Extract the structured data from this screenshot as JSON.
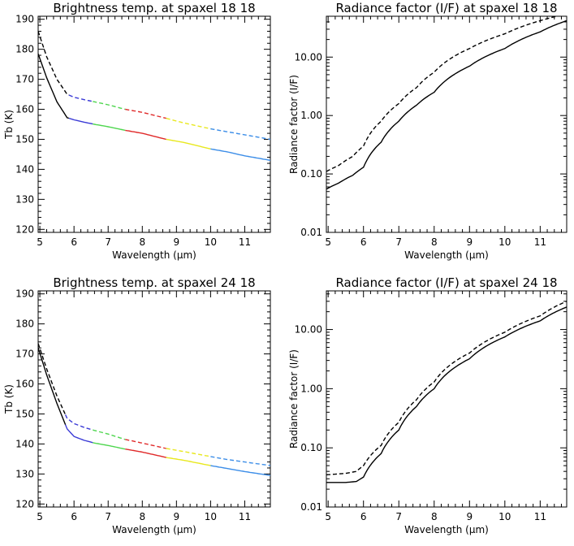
{
  "chart_data": [
    {
      "type": "line",
      "title": "Brightness temp. at spaxel 18 18",
      "xlabel": "Wavelength (μm)",
      "ylabel": "Tb (K)",
      "xlim": [
        4.95,
        11.75
      ],
      "ylim": [
        119,
        191
      ],
      "yscale": "linear",
      "xticks": [
        5,
        6,
        7,
        8,
        9,
        10,
        11
      ],
      "xtick_labels": [
        "5",
        "6",
        "7",
        "8",
        "9",
        "10",
        "11"
      ],
      "yticks": [
        120,
        130,
        140,
        150,
        160,
        170,
        180,
        190
      ],
      "ytick_labels": [
        "120",
        "130",
        "140",
        "150",
        "160",
        "170",
        "180",
        "190"
      ],
      "series": [
        {
          "name": "solid",
          "style": "solid",
          "x": [
            4.95,
            5.2,
            5.5,
            5.8,
            6.0,
            6.3,
            6.6,
            7.0,
            7.5,
            8.0,
            8.7,
            9.2,
            10.0,
            10.5,
            11.0,
            11.75
          ],
          "y": [
            178.5,
            170.5,
            162.5,
            157.2,
            156.5,
            155.7,
            155.0,
            154.2,
            153.0,
            152.0,
            150.0,
            149.0,
            146.8,
            145.8,
            144.5,
            143.0
          ]
        },
        {
          "name": "dashed",
          "style": "dashed",
          "x": [
            4.95,
            5.2,
            5.5,
            5.8,
            6.0,
            6.3,
            6.6,
            7.0,
            7.5,
            8.0,
            8.7,
            9.2,
            10.0,
            10.5,
            11.0,
            11.75
          ],
          "y": [
            186.0,
            177.5,
            170.0,
            165.0,
            164.0,
            163.2,
            162.5,
            161.5,
            160.0,
            159.0,
            157.0,
            155.5,
            153.5,
            152.5,
            151.5,
            150.0
          ]
        }
      ],
      "segments": [
        {
          "from": 4.95,
          "to": 5.85,
          "color": "#000000"
        },
        {
          "from": 5.85,
          "to": 6.55,
          "color": "#3b3bd6"
        },
        {
          "from": 6.55,
          "to": 7.5,
          "color": "#4fd64f"
        },
        {
          "from": 7.5,
          "to": 8.7,
          "color": "#e02a2a"
        },
        {
          "from": 8.7,
          "to": 10.0,
          "color": "#e8e820"
        },
        {
          "from": 10.0,
          "to": 11.75,
          "color": "#3d8ee8"
        }
      ]
    },
    {
      "type": "line",
      "title": "Radiance factor (I/F) at spaxel 18 18",
      "xlabel": "Wavelength (μm)",
      "ylabel": "Radiance factor (I/F)",
      "xlim": [
        4.95,
        11.75
      ],
      "ylim": [
        0.01,
        50
      ],
      "yscale": "log",
      "xticks": [
        5,
        6,
        7,
        8,
        9,
        10,
        11
      ],
      "xtick_labels": [
        "5",
        "6",
        "7",
        "8",
        "9",
        "10",
        "11"
      ],
      "yticks": [
        0.01,
        0.1,
        1,
        10
      ],
      "ytick_labels": [
        "0.01",
        "0.10",
        "1.00",
        "10.00"
      ],
      "series": [
        {
          "name": "solid",
          "style": "solid",
          "x": [
            4.95,
            5.3,
            5.7,
            6.0,
            6.5,
            7.0,
            7.5,
            8.0,
            9.0,
            10.0,
            11.0,
            11.75
          ],
          "y": [
            0.055,
            0.07,
            0.095,
            0.13,
            0.35,
            0.8,
            1.5,
            2.5,
            7.0,
            14.0,
            27.0,
            42.0
          ]
        },
        {
          "name": "dashed",
          "style": "dashed",
          "x": [
            4.95,
            5.3,
            5.7,
            6.0,
            6.5,
            7.0,
            7.5,
            8.0,
            9.0,
            10.0,
            11.0,
            11.75
          ],
          "y": [
            0.11,
            0.14,
            0.2,
            0.3,
            0.8,
            1.6,
            3.0,
            5.5,
            14.0,
            25.0,
            42.0,
            55.0
          ]
        }
      ]
    },
    {
      "type": "line",
      "title": "Brightness temp. at spaxel 24 18",
      "xlabel": "Wavelength (μm)",
      "ylabel": "Tb (K)",
      "xlim": [
        4.95,
        11.75
      ],
      "ylim": [
        119,
        191
      ],
      "yscale": "linear",
      "xticks": [
        5,
        6,
        7,
        8,
        9,
        10,
        11
      ],
      "xtick_labels": [
        "5",
        "6",
        "7",
        "8",
        "9",
        "10",
        "11"
      ],
      "yticks": [
        120,
        130,
        140,
        150,
        160,
        170,
        180,
        190
      ],
      "ytick_labels": [
        "120",
        "130",
        "140",
        "150",
        "160",
        "170",
        "180",
        "190"
      ],
      "series": [
        {
          "name": "solid",
          "style": "solid",
          "x": [
            4.95,
            5.2,
            5.5,
            5.8,
            6.0,
            6.3,
            6.6,
            7.0,
            7.5,
            8.0,
            8.7,
            9.2,
            10.0,
            10.5,
            11.0,
            11.75
          ],
          "y": [
            172.0,
            163.0,
            153.5,
            145.0,
            142.5,
            141.2,
            140.3,
            139.5,
            138.3,
            137.3,
            135.5,
            134.6,
            132.8,
            131.8,
            130.8,
            129.5
          ]
        },
        {
          "name": "dashed",
          "style": "dashed",
          "x": [
            4.95,
            5.2,
            5.5,
            5.8,
            6.0,
            6.3,
            6.6,
            7.0,
            7.5,
            8.0,
            8.7,
            9.2,
            10.0,
            10.5,
            11.0,
            11.75
          ],
          "y": [
            173.5,
            165.0,
            156.0,
            148.5,
            146.8,
            145.5,
            144.5,
            143.3,
            141.5,
            140.3,
            138.5,
            137.5,
            135.8,
            134.8,
            134.0,
            132.8
          ]
        }
      ],
      "segments": [
        {
          "from": 4.95,
          "to": 5.75,
          "color": "#000000"
        },
        {
          "from": 5.75,
          "to": 6.55,
          "color": "#3b3bd6"
        },
        {
          "from": 6.55,
          "to": 7.5,
          "color": "#4fd64f"
        },
        {
          "from": 7.5,
          "to": 8.7,
          "color": "#e02a2a"
        },
        {
          "from": 8.7,
          "to": 10.0,
          "color": "#e8e820"
        },
        {
          "from": 10.0,
          "to": 11.75,
          "color": "#3d8ee8"
        }
      ]
    },
    {
      "type": "line",
      "title": "Radiance factor (I/F) at spaxel 24 18",
      "xlabel": "Wavelength (μm)",
      "ylabel": "Radiance factor (I/F)",
      "xlim": [
        4.95,
        11.75
      ],
      "ylim": [
        0.01,
        45
      ],
      "yscale": "log",
      "xticks": [
        5,
        6,
        7,
        8,
        9,
        10,
        11
      ],
      "xtick_labels": [
        "5",
        "6",
        "7",
        "8",
        "9",
        "10",
        "11"
      ],
      "yticks": [
        0.01,
        0.1,
        1,
        10
      ],
      "ytick_labels": [
        "0.01",
        "0.10",
        "1.00",
        "10.00"
      ],
      "series": [
        {
          "name": "solid",
          "style": "solid",
          "x": [
            4.95,
            5.5,
            5.8,
            6.0,
            6.5,
            7.0,
            7.5,
            8.0,
            9.0,
            10.0,
            11.0,
            11.75
          ],
          "y": [
            0.026,
            0.026,
            0.027,
            0.032,
            0.08,
            0.2,
            0.5,
            1.0,
            3.2,
            7.5,
            14.0,
            24.0
          ]
        },
        {
          "name": "dashed",
          "style": "dashed",
          "x": [
            4.95,
            5.5,
            5.8,
            6.0,
            6.5,
            7.0,
            7.5,
            8.0,
            9.0,
            10.0,
            11.0,
            11.75
          ],
          "y": [
            0.035,
            0.037,
            0.04,
            0.05,
            0.11,
            0.27,
            0.65,
            1.3,
            4.0,
            9.0,
            17.0,
            30.0
          ]
        }
      ]
    }
  ]
}
